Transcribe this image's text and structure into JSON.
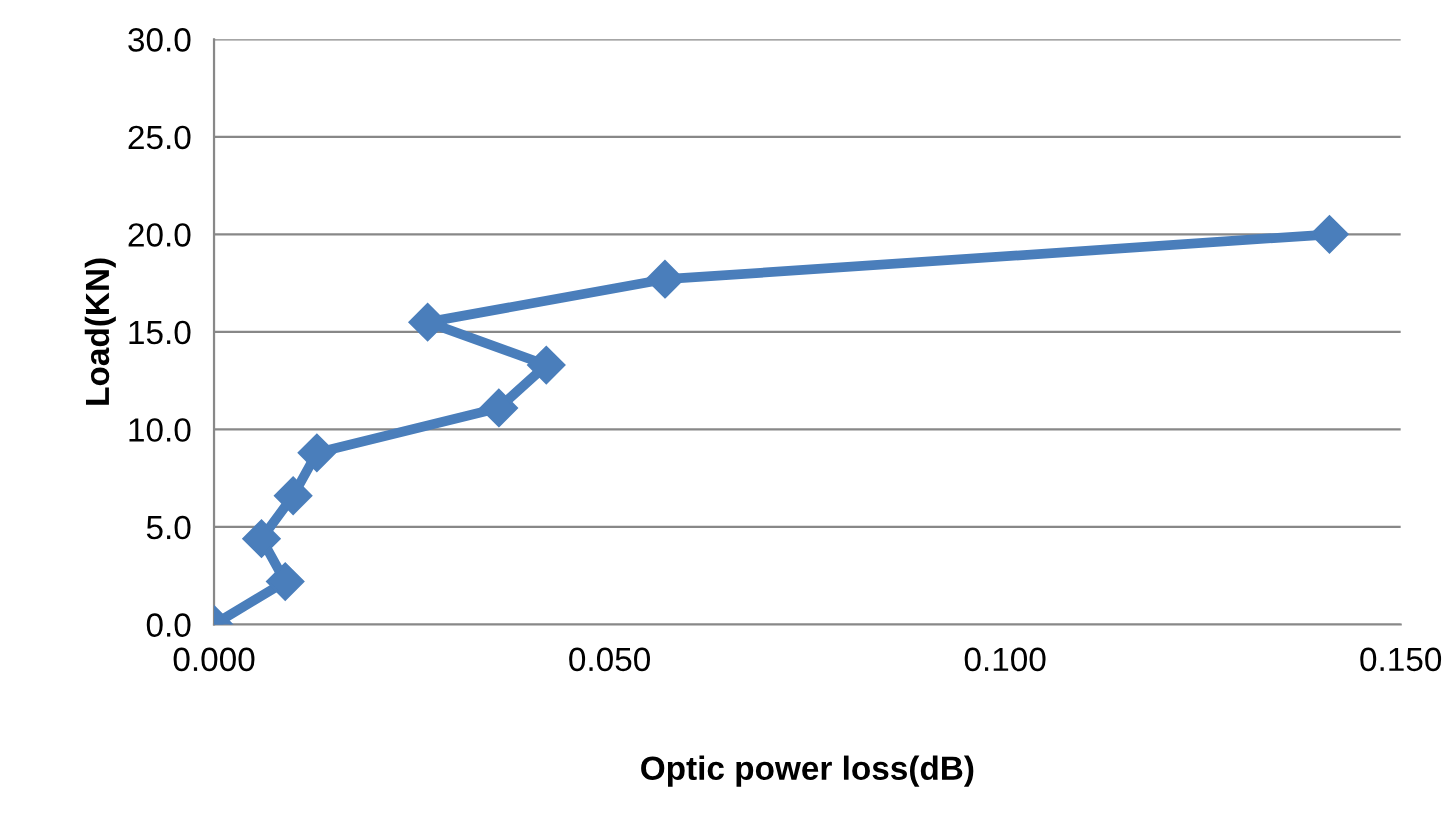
{
  "chart_data": {
    "type": "line",
    "xlabel": "Optic power loss(dB)",
    "ylabel": "Load(KN)",
    "series": [
      {
        "color": "#4a7ebb",
        "x": [
          0.0,
          0.009,
          0.006,
          0.01,
          0.013,
          0.036,
          0.042,
          0.027,
          0.057,
          0.141
        ],
        "values": [
          0.0,
          2.2,
          4.4,
          6.6,
          8.8,
          11.1,
          13.3,
          15.5,
          17.7,
          20.0
        ]
      }
    ],
    "xlim": [
      0,
      0.15
    ],
    "xticks": [
      {
        "value": 0,
        "label": "0.000"
      },
      {
        "value": 0.05,
        "label": "0.050"
      },
      {
        "value": 0.1,
        "label": "0.100"
      },
      {
        "value": 0.15,
        "label": "0.150"
      }
    ],
    "ylim": [
      0,
      30
    ],
    "yticks": [
      {
        "value": 0,
        "label": "0.0"
      },
      {
        "value": 5,
        "label": "5.0"
      },
      {
        "value": 10,
        "label": "10.0"
      },
      {
        "value": 15,
        "label": "15.0"
      },
      {
        "value": 20,
        "label": "20.0"
      },
      {
        "value": 25,
        "label": "25.0"
      },
      {
        "value": 30,
        "label": "30.0"
      }
    ],
    "grid": "y",
    "marker": "diamond",
    "line_style": "solid"
  }
}
